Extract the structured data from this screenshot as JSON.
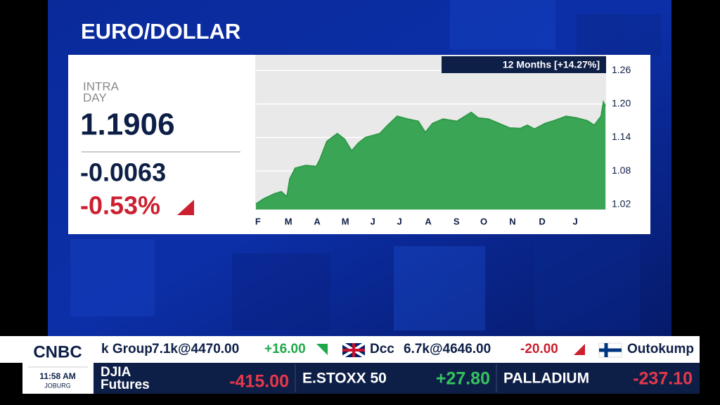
{
  "header": {
    "title": "EURO/DOLLAR"
  },
  "quote": {
    "label_line1": "INTRA",
    "label_line2": "DAY",
    "price": "1.1906",
    "change": "-0.0063",
    "change_pct": "-0.53%"
  },
  "chart_data": {
    "type": "area",
    "badge": "12 Months [+14.27%]",
    "color": "#3aa655",
    "line_color": "#2f9a49",
    "x": [
      0,
      0.27,
      0.64,
      0.89,
      1.09,
      1.19,
      1.38,
      1.75,
      2.12,
      2.25,
      2.49,
      2.86,
      3.11,
      3.36,
      3.6,
      3.85,
      4.35,
      4.59,
      4.96,
      5.33,
      5.7,
      5.95,
      6.2,
      6.57,
      7.06,
      7.56,
      7.8,
      8.17,
      8.54,
      8.91,
      9.28,
      9.53,
      9.78,
      10.15,
      10.52,
      10.89,
      11.26,
      11.63,
      11.88,
      12.12,
      12.2,
      12.27
    ],
    "values": [
      1.021,
      1.03,
      1.039,
      1.043,
      1.034,
      1.066,
      1.085,
      1.09,
      1.088,
      1.101,
      1.133,
      1.147,
      1.137,
      1.116,
      1.13,
      1.14,
      1.147,
      1.16,
      1.178,
      1.173,
      1.169,
      1.149,
      1.165,
      1.173,
      1.169,
      1.185,
      1.175,
      1.173,
      1.165,
      1.157,
      1.156,
      1.162,
      1.155,
      1.165,
      1.171,
      1.178,
      1.175,
      1.17,
      1.162,
      1.178,
      1.203,
      1.196
    ],
    "xlim": [
      0,
      12.27
    ],
    "xticks": [
      {
        "value": 0.07,
        "label": "F"
      },
      {
        "value": 1.14,
        "label": "M"
      },
      {
        "value": 2.15,
        "label": "A"
      },
      {
        "value": 3.14,
        "label": "M"
      },
      {
        "value": 4.1,
        "label": "J"
      },
      {
        "value": 5.04,
        "label": "J"
      },
      {
        "value": 6.05,
        "label": "A"
      },
      {
        "value": 7.04,
        "label": "S"
      },
      {
        "value": 8.0,
        "label": "O"
      },
      {
        "value": 9.01,
        "label": "N"
      },
      {
        "value": 10.05,
        "label": "D"
      },
      {
        "value": 11.21,
        "label": "J"
      }
    ],
    "ylim": [
      1.011,
      1.288
    ],
    "yticks": [
      1.02,
      1.08,
      1.14,
      {
        "value": 1.2,
        "label": "1.20"
      },
      1.26
    ],
    "grid": true
  },
  "ticker": {
    "items": [
      {
        "name": "k Group",
        "trade": "7.1k@4470.00",
        "change": "+16.00"
      },
      {
        "name": "Dcc",
        "trade": "6.7k@4646.00",
        "change": "-20.00"
      },
      {
        "name": "Outokump"
      }
    ]
  },
  "logo": {
    "brand": "CNBC",
    "time": "11:58 AM",
    "city": "JOBURG"
  },
  "markets": [
    {
      "name_line1": "DJIA",
      "name_line2": "Futures",
      "change": "-415.00"
    },
    {
      "name": "E.STOXX 50",
      "change": "+27.80"
    },
    {
      "name": "PALLADIUM",
      "change": "-237.10"
    }
  ]
}
